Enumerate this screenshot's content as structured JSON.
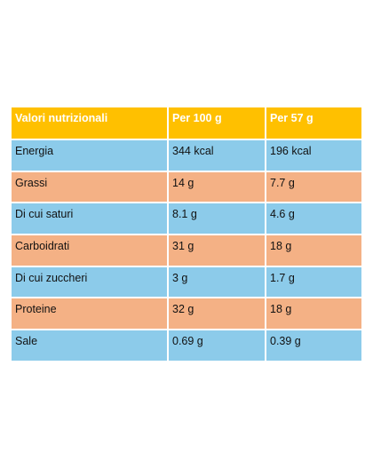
{
  "table": {
    "headers": [
      "Valori nutrizionali",
      "Per 100 g",
      "Per 57 g"
    ],
    "rows": [
      {
        "label": "Energia",
        "per100": "344 kcal",
        "per57": "196 kcal"
      },
      {
        "label": "Grassi",
        "per100": "14 g",
        "per57": "7.7 g"
      },
      {
        "label": "Di cui saturi",
        "per100": "8.1 g",
        "per57": "4.6 g"
      },
      {
        "label": "Carboidrati",
        "per100": "31 g",
        "per57": "18 g"
      },
      {
        "label": "Di cui zuccheri",
        "per100": "3 g",
        "per57": "1.7 g"
      },
      {
        "label": "Proteine",
        "per100": "32 g",
        "per57": "18 g"
      },
      {
        "label": "Sale",
        "per100": "0.69 g",
        "per57": "0.39 g"
      }
    ]
  },
  "colors": {
    "header": "#ffc000",
    "row_blue": "#8ccbea",
    "row_orange": "#f4b185"
  }
}
